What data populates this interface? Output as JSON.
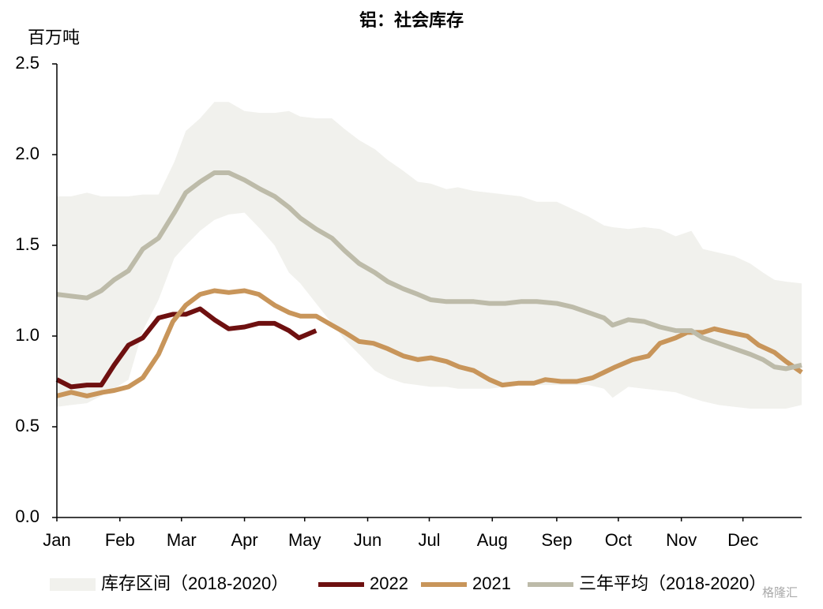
{
  "chart_data": {
    "type": "line",
    "title": "铝：社会库存",
    "y_label": "百万吨",
    "watermark": "格隆汇",
    "xlim": [
      0,
      52
    ],
    "xticks": [
      {
        "value": 0,
        "label": "Jan"
      },
      {
        "value": 4.4,
        "label": "Feb"
      },
      {
        "value": 8.7,
        "label": "Mar"
      },
      {
        "value": 13.1,
        "label": "Apr"
      },
      {
        "value": 17.3,
        "label": "May"
      },
      {
        "value": 21.7,
        "label": "Jun"
      },
      {
        "value": 26.0,
        "label": "Jul"
      },
      {
        "value": 30.4,
        "label": "Aug"
      },
      {
        "value": 34.9,
        "label": "Sep"
      },
      {
        "value": 39.2,
        "label": "Oct"
      },
      {
        "value": 43.6,
        "label": "Nov"
      },
      {
        "value": 47.9,
        "label": "Dec"
      }
    ],
    "ylim": [
      0,
      2.5
    ],
    "yticks": [
      {
        "value": 0,
        "label": "0.0"
      },
      0.5,
      {
        "value": 1,
        "label": "1.0"
      },
      1.5,
      {
        "value": 2,
        "label": "2.0"
      },
      2.5
    ],
    "series": [
      {
        "name": "库存区间（2018-2020）",
        "kind": "band",
        "color": "#f1f1ed",
        "x": [
          0,
          1.0,
          2.1,
          3.1,
          4.0,
          5.0,
          6.0,
          7.1,
          8.2,
          9.0,
          10.0,
          11.0,
          12.0,
          13.1,
          14.2,
          15.2,
          16.2,
          17.0,
          18.1,
          19.2,
          20.1,
          21.1,
          22.2,
          23.1,
          24.2,
          25.2,
          26.1,
          27.2,
          28.0,
          29.1,
          30.2,
          31.3,
          32.4,
          33.5,
          34.9,
          36.0,
          37.1,
          38.2,
          38.8,
          39.9,
          41.0,
          42.1,
          43.2,
          44.3,
          45.1,
          46.2,
          47.3,
          48.4,
          49.3,
          50.1,
          50.9,
          52.0
        ],
        "values": [
          1.77,
          1.77,
          1.79,
          1.77,
          1.77,
          1.77,
          1.78,
          1.78,
          1.96,
          2.13,
          2.2,
          2.29,
          2.29,
          2.24,
          2.23,
          2.23,
          2.24,
          2.21,
          2.2,
          2.2,
          2.14,
          2.08,
          2.03,
          1.97,
          1.91,
          1.85,
          1.84,
          1.81,
          1.82,
          1.8,
          1.79,
          1.78,
          1.77,
          1.74,
          1.74,
          1.7,
          1.66,
          1.61,
          1.6,
          1.59,
          1.6,
          1.59,
          1.55,
          1.58,
          1.48,
          1.46,
          1.44,
          1.4,
          1.35,
          1.31,
          1.3,
          1.29
        ],
        "lower": [
          0.61,
          0.62,
          0.63,
          0.67,
          0.71,
          0.76,
          1.03,
          1.2,
          1.43,
          1.5,
          1.58,
          1.64,
          1.67,
          1.68,
          1.59,
          1.5,
          1.35,
          1.29,
          1.18,
          1.07,
          0.98,
          0.9,
          0.81,
          0.77,
          0.74,
          0.73,
          0.72,
          0.72,
          0.71,
          0.71,
          0.71,
          0.72,
          0.73,
          0.73,
          0.73,
          0.73,
          0.73,
          0.71,
          0.66,
          0.72,
          0.71,
          0.7,
          0.69,
          0.66,
          0.64,
          0.62,
          0.61,
          0.6,
          0.6,
          0.6,
          0.6,
          0.62
        ]
      },
      {
        "name": "2022",
        "color": "#6e1010",
        "x": [
          0,
          1.0,
          2.1,
          3.1,
          4.0,
          5.0,
          6.0,
          7.1,
          8.1,
          9.0,
          10.0,
          11.0,
          12.0,
          13.1,
          14.1,
          15.2,
          16.2,
          16.9,
          18.1
        ],
        "values": [
          0.76,
          0.72,
          0.73,
          0.73,
          0.84,
          0.95,
          0.99,
          1.1,
          1.12,
          1.12,
          1.15,
          1.09,
          1.04,
          1.05,
          1.07,
          1.07,
          1.03,
          0.99,
          1.03
        ]
      },
      {
        "name": "2021",
        "color": "#c8955a",
        "x": [
          0,
          1.0,
          2.1,
          3.2,
          4.0,
          5.0,
          6.0,
          7.1,
          8.1,
          9.0,
          10.0,
          11.0,
          12.0,
          13.1,
          14.1,
          15.2,
          16.2,
          17.0,
          18.1,
          19.2,
          20.1,
          21.1,
          22.1,
          23.1,
          24.2,
          25.2,
          26.1,
          27.2,
          28.1,
          29.1,
          30.2,
          31.1,
          32.2,
          33.3,
          34.1,
          35.2,
          36.3,
          37.4,
          38.2,
          39.0,
          40.2,
          41.3,
          42.1,
          43.2,
          44.0,
          45.1,
          45.9,
          47.0,
          48.2,
          49.0,
          50.1,
          50.9,
          52.0
        ],
        "values": [
          0.67,
          0.69,
          0.67,
          0.69,
          0.7,
          0.72,
          0.77,
          0.9,
          1.08,
          1.17,
          1.23,
          1.25,
          1.24,
          1.25,
          1.23,
          1.17,
          1.13,
          1.11,
          1.11,
          1.06,
          1.02,
          0.97,
          0.96,
          0.93,
          0.89,
          0.87,
          0.88,
          0.86,
          0.83,
          0.81,
          0.76,
          0.73,
          0.74,
          0.74,
          0.76,
          0.75,
          0.75,
          0.77,
          0.8,
          0.83,
          0.87,
          0.89,
          0.96,
          0.99,
          1.02,
          1.02,
          1.04,
          1.02,
          1.0,
          0.95,
          0.91,
          0.86,
          0.8
        ]
      },
      {
        "name": "三年平均（2018-2020）",
        "color": "#bdbba9",
        "x": [
          0,
          1.0,
          2.1,
          3.1,
          4.0,
          5.0,
          6.0,
          7.1,
          8.2,
          9.0,
          10.0,
          11.0,
          12.0,
          13.1,
          14.2,
          15.2,
          16.2,
          17.0,
          18.1,
          19.2,
          20.1,
          21.1,
          22.2,
          23.1,
          24.2,
          25.2,
          26.1,
          27.2,
          28.0,
          29.1,
          30.2,
          31.3,
          32.4,
          33.5,
          34.9,
          36.0,
          37.1,
          38.2,
          38.8,
          39.9,
          41.0,
          42.1,
          43.2,
          44.3,
          45.1,
          46.2,
          47.3,
          48.4,
          49.3,
          50.1,
          50.9,
          52.0
        ],
        "values": [
          1.23,
          1.22,
          1.21,
          1.25,
          1.31,
          1.36,
          1.48,
          1.54,
          1.68,
          1.79,
          1.85,
          1.9,
          1.9,
          1.86,
          1.81,
          1.77,
          1.71,
          1.65,
          1.59,
          1.54,
          1.47,
          1.4,
          1.35,
          1.3,
          1.26,
          1.23,
          1.2,
          1.19,
          1.19,
          1.19,
          1.18,
          1.18,
          1.19,
          1.19,
          1.18,
          1.16,
          1.13,
          1.1,
          1.06,
          1.09,
          1.08,
          1.05,
          1.03,
          1.03,
          0.99,
          0.96,
          0.93,
          0.9,
          0.87,
          0.83,
          0.82,
          0.84
        ]
      }
    ]
  }
}
